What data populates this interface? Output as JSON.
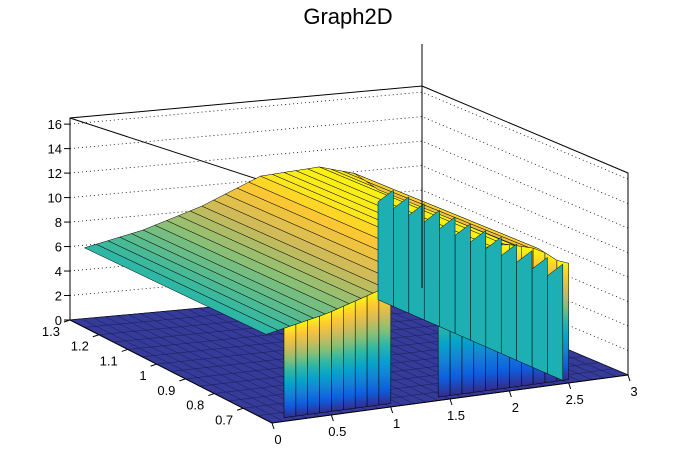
{
  "chart_data": {
    "type": "surface",
    "title": "Graph2D",
    "x_axis": {
      "range": [
        0,
        3
      ],
      "ticks": [
        "0",
        "0.5",
        "1",
        "1.5",
        "2",
        "2.5",
        "3"
      ]
    },
    "y_axis": {
      "range": [
        0.6,
        1.3
      ],
      "ticks": [
        "0.7",
        "0.8",
        "0.9",
        "1",
        "1.1",
        "1.2",
        "1.3"
      ]
    },
    "z_axis": {
      "range": [
        0,
        16.5
      ],
      "ticks": [
        "0",
        "2",
        "4",
        "6",
        "8",
        "10",
        "12",
        "14",
        "16"
      ]
    },
    "grid": true,
    "colormap": [
      "#352a87",
      "#0f5cdd",
      "#1481d6",
      "#06a4ca",
      "#2eb7a4",
      "#87bf77",
      "#d1bb59",
      "#fec832",
      "#f9fb0e"
    ],
    "surface_description_values": {
      "floor_z": 0,
      "front_face_heights": [
        {
          "x": 0.0,
          "z": 7.0
        },
        {
          "x": 0.5,
          "z": 8.0
        },
        {
          "x": 1.0,
          "z": 9.5
        },
        {
          "x": 1.5,
          "z": 11.5
        },
        {
          "x": 2.0,
          "z": 11.8
        },
        {
          "x": 2.3,
          "z": 11.0
        },
        {
          "x": 2.5,
          "z": 9.5
        }
      ]
    }
  }
}
